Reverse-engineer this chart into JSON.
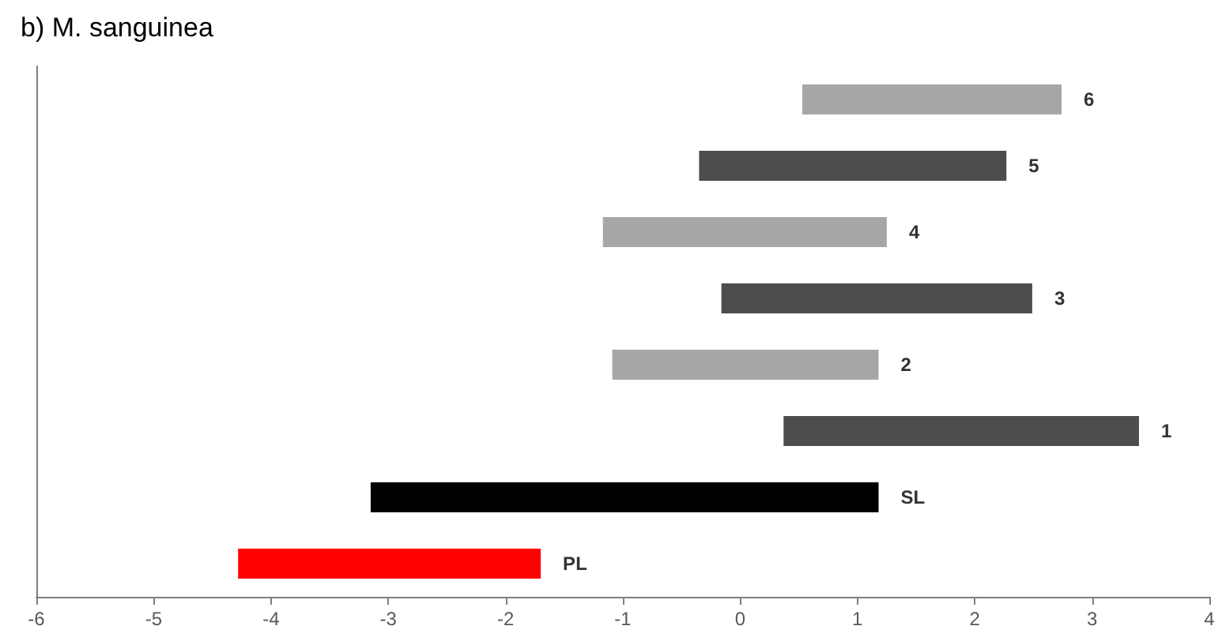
{
  "chart_data": {
    "type": "bar",
    "orientation": "horizontal",
    "title": "b) M. sanguinea",
    "categories": [
      "6",
      "5",
      "4",
      "3",
      "2",
      "1",
      "SL",
      "PL"
    ],
    "base": [
      0.53,
      -0.35,
      -1.17,
      -0.16,
      -1.09,
      0.37,
      -3.15,
      -4.28
    ],
    "values": [
      2.21,
      2.62,
      2.42,
      2.65,
      2.27,
      3.03,
      4.33,
      2.58
    ],
    "colors": [
      "#a6a6a6",
      "#4d4d4d",
      "#a6a6a6",
      "#4d4d4d",
      "#a6a6a6",
      "#4d4d4d",
      "#000000",
      "#ff0000"
    ],
    "xlim": [
      -6,
      4
    ],
    "xticks": [
      -6,
      -5,
      -4,
      -3,
      -2,
      -1,
      0,
      1,
      2,
      3,
      4
    ],
    "tick_labels": "x",
    "grid": false
  }
}
